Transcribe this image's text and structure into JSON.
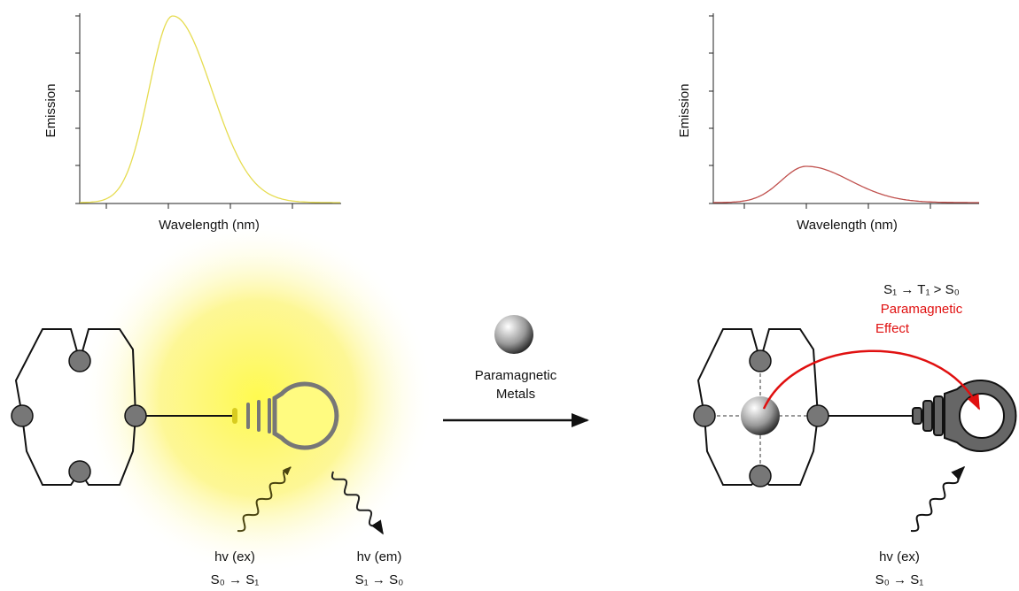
{
  "spectra": [
    {
      "y_label": "Emission",
      "x_label": "Wavelength (nm)"
    },
    {
      "y_label": "Emission",
      "x_label": "Wavelength (nm)"
    }
  ],
  "reagent": {
    "label_lines": [
      "Paramagnetic",
      "Metals"
    ]
  },
  "left": {
    "excitation": {
      "label": "hv (ex)",
      "transition": "S₀ → S₁"
    },
    "emission": {
      "label": "hv (em)",
      "transition": "S₁ → S₀"
    }
  },
  "right": {
    "transition": "S₁ → T₁ > S₀",
    "effect_lines": [
      "Paramagnetic",
      "Effect"
    ],
    "excitation": {
      "label": "hv (ex)",
      "transition": "S₀ → S₁"
    }
  }
}
